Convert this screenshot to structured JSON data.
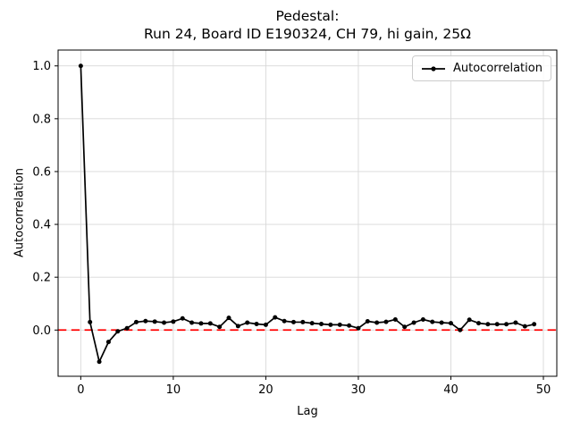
{
  "chart_data": {
    "type": "line",
    "title": "Pedestal:",
    "subtitle": "Run 24, Board ID E190324, CH 79, hi gain, 25Ω",
    "xlabel": "Lag",
    "ylabel": "Autocorrelation",
    "grid": true,
    "legend_position": "upper right",
    "xlim": [
      -2.45,
      51.45
    ],
    "ylim": [
      -0.175,
      1.06
    ],
    "x_ticks": [
      0,
      10,
      20,
      30,
      40,
      50
    ],
    "y_ticks": [
      "0.0",
      "0.2",
      "0.4",
      "0.6",
      "0.8",
      "1.0"
    ],
    "colors": {
      "line": "#000000",
      "reference": "#ff0000",
      "grid": "#d8d8d8",
      "spine": "#000000"
    },
    "reference_line": {
      "y": 0.0,
      "color": "#ff0000",
      "style": "dashed"
    },
    "x": [
      0,
      1,
      2,
      3,
      4,
      5,
      6,
      7,
      8,
      9,
      10,
      11,
      12,
      13,
      14,
      15,
      16,
      17,
      18,
      19,
      20,
      21,
      22,
      23,
      24,
      25,
      26,
      27,
      28,
      29,
      30,
      31,
      32,
      33,
      34,
      35,
      36,
      37,
      38,
      39,
      40,
      41,
      42,
      43,
      44,
      45,
      46,
      47,
      48,
      49
    ],
    "series": [
      {
        "name": "Autocorrelation",
        "color": "#000000",
        "marker": "dot",
        "values": [
          1.0,
          0.03,
          -0.12,
          -0.045,
          -0.005,
          0.007,
          0.03,
          0.034,
          0.032,
          0.028,
          0.032,
          0.044,
          0.028,
          0.025,
          0.025,
          0.012,
          0.046,
          0.015,
          0.028,
          0.023,
          0.02,
          0.048,
          0.034,
          0.03,
          0.03,
          0.026,
          0.023,
          0.02,
          0.02,
          0.017,
          0.007,
          0.033,
          0.028,
          0.031,
          0.04,
          0.012,
          0.028,
          0.04,
          0.031,
          0.028,
          0.026,
          0.0,
          0.039,
          0.026,
          0.022,
          0.022,
          0.022,
          0.028,
          0.014,
          0.022
        ]
      }
    ]
  }
}
